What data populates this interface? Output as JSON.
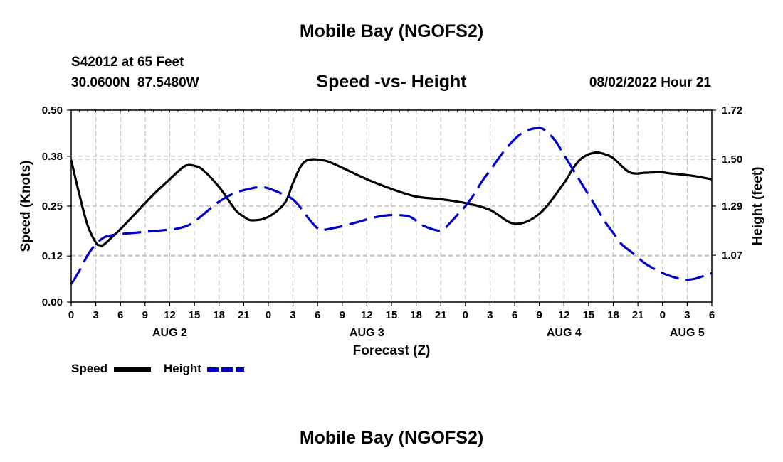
{
  "header": {
    "top_title": "Mobile Bay (NGOFS2)",
    "station": "S42012 at 65 Feet",
    "coords": "30.0600N  87.5480W",
    "subtitle": "Speed -vs- Height",
    "datetime": "08/02/2022 Hour 21",
    "bottom_title": "Mobile Bay (NGOFS2)"
  },
  "legend": {
    "speed_label": "Speed",
    "height_label": "Height"
  },
  "colors": {
    "speed": "#000000",
    "height": "#0000cc",
    "grid": "#c0c0c0"
  },
  "chart_data": {
    "type": "line",
    "title": "Speed -vs- Height",
    "xlabel": "Forecast (Z)",
    "ylabel": "Speed (Knots)",
    "y2label": "Height (feet)",
    "xlim": [
      0,
      78
    ],
    "ylim": [
      0.0,
      0.5
    ],
    "y2lim": [
      0.86,
      1.72
    ],
    "x_ticks": [
      0,
      3,
      6,
      9,
      12,
      15,
      18,
      21,
      24,
      27,
      30,
      33,
      36,
      39,
      42,
      45,
      48,
      51,
      54,
      57,
      60,
      63,
      66,
      69,
      72,
      75,
      78
    ],
    "x_tick_labels": [
      "0",
      "3",
      "6",
      "9",
      "12",
      "15",
      "18",
      "21",
      "0",
      "3",
      "6",
      "9",
      "12",
      "15",
      "18",
      "21",
      "0",
      "3",
      "6",
      "9",
      "12",
      "15",
      "18",
      "21",
      "0",
      "3",
      "6"
    ],
    "date_labels": [
      {
        "x": 12,
        "label": "AUG 2"
      },
      {
        "x": 36,
        "label": "AUG 3"
      },
      {
        "x": 60,
        "label": "AUG 4"
      },
      {
        "x": 75,
        "label": "AUG 5"
      }
    ],
    "y_ticks": [
      0.0,
      0.12,
      0.25,
      0.38,
      0.5
    ],
    "y_tick_labels": [
      "0.00",
      "0.12",
      "0.25",
      "0.38",
      "0.50"
    ],
    "y2_ticks": [
      1.07,
      1.29,
      1.5,
      1.72
    ],
    "y2_tick_labels": [
      "1.07",
      "1.29",
      "1.50",
      "1.72"
    ],
    "series": [
      {
        "name": "Speed",
        "axis": "left",
        "style": "solid",
        "x": [
          0,
          1,
          2,
          3,
          3.5,
          4,
          5,
          6,
          8,
          10,
          12,
          13,
          14,
          15,
          16,
          18,
          20,
          21,
          22,
          24,
          26,
          27,
          28,
          29,
          31,
          33,
          34,
          36,
          39,
          42,
          45,
          48,
          51,
          54,
          57,
          60,
          61,
          62,
          63,
          63.5,
          64,
          65,
          66,
          68,
          70,
          71,
          72,
          73,
          74,
          76,
          78
        ],
        "y": [
          0.37,
          0.28,
          0.2,
          0.155,
          0.148,
          0.15,
          0.17,
          0.19,
          0.235,
          0.28,
          0.32,
          0.34,
          0.356,
          0.355,
          0.345,
          0.3,
          0.24,
          0.223,
          0.213,
          0.222,
          0.258,
          0.31,
          0.355,
          0.371,
          0.368,
          0.35,
          0.34,
          0.32,
          0.295,
          0.275,
          0.268,
          0.258,
          0.24,
          0.204,
          0.23,
          0.31,
          0.345,
          0.372,
          0.385,
          0.388,
          0.39,
          0.385,
          0.375,
          0.338,
          0.337,
          0.338,
          0.338,
          0.335,
          0.333,
          0.328,
          0.32
        ]
      },
      {
        "name": "Height",
        "axis": "right",
        "style": "dashed",
        "x": [
          0,
          1,
          2,
          3,
          4,
          5,
          6,
          9,
          12,
          13,
          14,
          15,
          16,
          18,
          20,
          22,
          23,
          24,
          26,
          27,
          28,
          29,
          30,
          30.5,
          31,
          33,
          35,
          37,
          39,
          41,
          42,
          43,
          45,
          46,
          47,
          48,
          49,
          50,
          51,
          53,
          55,
          57,
          58,
          59,
          60,
          61,
          62,
          63,
          64,
          65,
          66,
          67,
          68,
          69,
          70,
          72,
          74,
          75,
          76,
          78
        ],
        "y": [
          0.94,
          1.0,
          1.07,
          1.12,
          1.15,
          1.16,
          1.165,
          1.175,
          1.185,
          1.19,
          1.2,
          1.22,
          1.25,
          1.31,
          1.35,
          1.37,
          1.375,
          1.37,
          1.34,
          1.32,
          1.28,
          1.23,
          1.19,
          1.18,
          1.185,
          1.2,
          1.22,
          1.24,
          1.25,
          1.245,
          1.225,
          1.2,
          1.18,
          1.21,
          1.25,
          1.29,
          1.34,
          1.4,
          1.45,
          1.55,
          1.62,
          1.64,
          1.62,
          1.58,
          1.52,
          1.46,
          1.4,
          1.34,
          1.28,
          1.22,
          1.17,
          1.12,
          1.09,
          1.06,
          1.03,
          0.99,
          0.965,
          0.96,
          0.965,
          0.99
        ]
      }
    ]
  }
}
